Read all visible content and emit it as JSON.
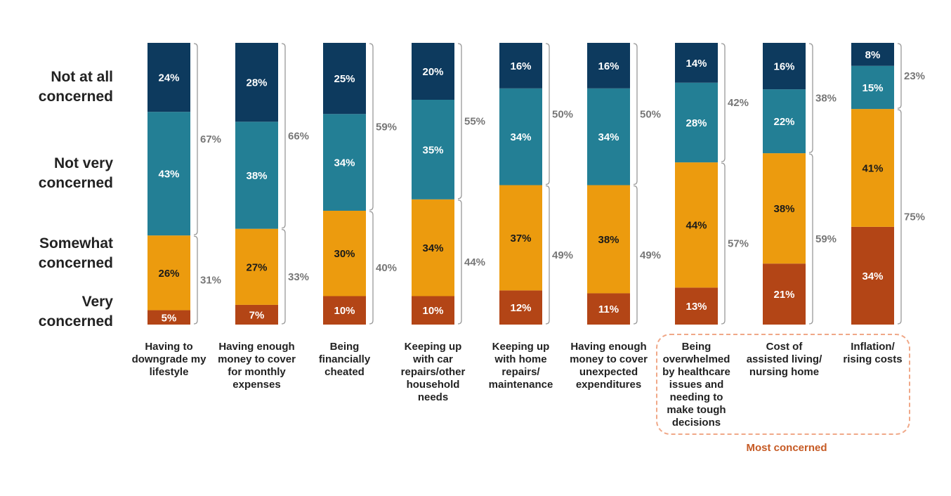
{
  "chart_data": {
    "type": "bar",
    "stacked": "vertical",
    "ylim": [
      0,
      100
    ],
    "grid": false,
    "legend_placement": "left",
    "categories": [
      [
        "Having to",
        "downgrade my",
        "lifestyle"
      ],
      [
        "Having enough",
        "money to cover",
        "for monthly",
        "expenses"
      ],
      [
        "Being",
        "financially",
        "cheated"
      ],
      [
        "Keeping up",
        "with car",
        "repairs/other",
        "household",
        "needs"
      ],
      [
        "Keeping up",
        "with home",
        "repairs/",
        "maintenance"
      ],
      [
        "Having enough",
        "money to cover",
        "unexpected",
        "expenditures"
      ],
      [
        "Being",
        "overwhelmed",
        "by healthcare",
        "issues and",
        "needing to",
        "make tough",
        "decisions"
      ],
      [
        "Cost of",
        "assisted living/",
        "nursing home"
      ],
      [
        "Inflation/",
        "rising costs"
      ]
    ],
    "series": [
      {
        "name": "Very concerned",
        "color": "#b34516",
        "values": [
          5,
          7,
          10,
          10,
          12,
          11,
          13,
          21,
          34
        ]
      },
      {
        "name": "Somewhat concerned",
        "color": "#ec9b0e",
        "values": [
          26,
          27,
          30,
          34,
          37,
          38,
          44,
          38,
          41
        ]
      },
      {
        "name": "Not very concerned",
        "color": "#237f95",
        "values": [
          43,
          38,
          34,
          35,
          34,
          34,
          28,
          22,
          15
        ]
      },
      {
        "name": "Not at all concerned",
        "color": "#0d3a5e",
        "values": [
          24,
          28,
          25,
          20,
          16,
          16,
          14,
          16,
          8
        ]
      }
    ],
    "value_suffix": "%",
    "totals_not_concerned": [
      "67%",
      "66%",
      "59%",
      "55%",
      "50%",
      "50%",
      "42%",
      "38%",
      "23%"
    ],
    "totals_concerned": [
      "31%",
      "33%",
      "40%",
      "44%",
      "49%",
      "49%",
      "57%",
      "59%",
      "75%"
    ],
    "legend_lines": {
      "not_at_all": [
        "Not at all",
        "concerned"
      ],
      "not_very": [
        "Not very",
        "concerned"
      ],
      "somewhat": [
        "Somewhat",
        "concerned"
      ],
      "very": [
        "Very",
        "concerned"
      ]
    },
    "highlight_label": "Most concerned",
    "highlight_color": "#c65a24",
    "bracket_color": "#999999",
    "total_color": "#777777"
  }
}
